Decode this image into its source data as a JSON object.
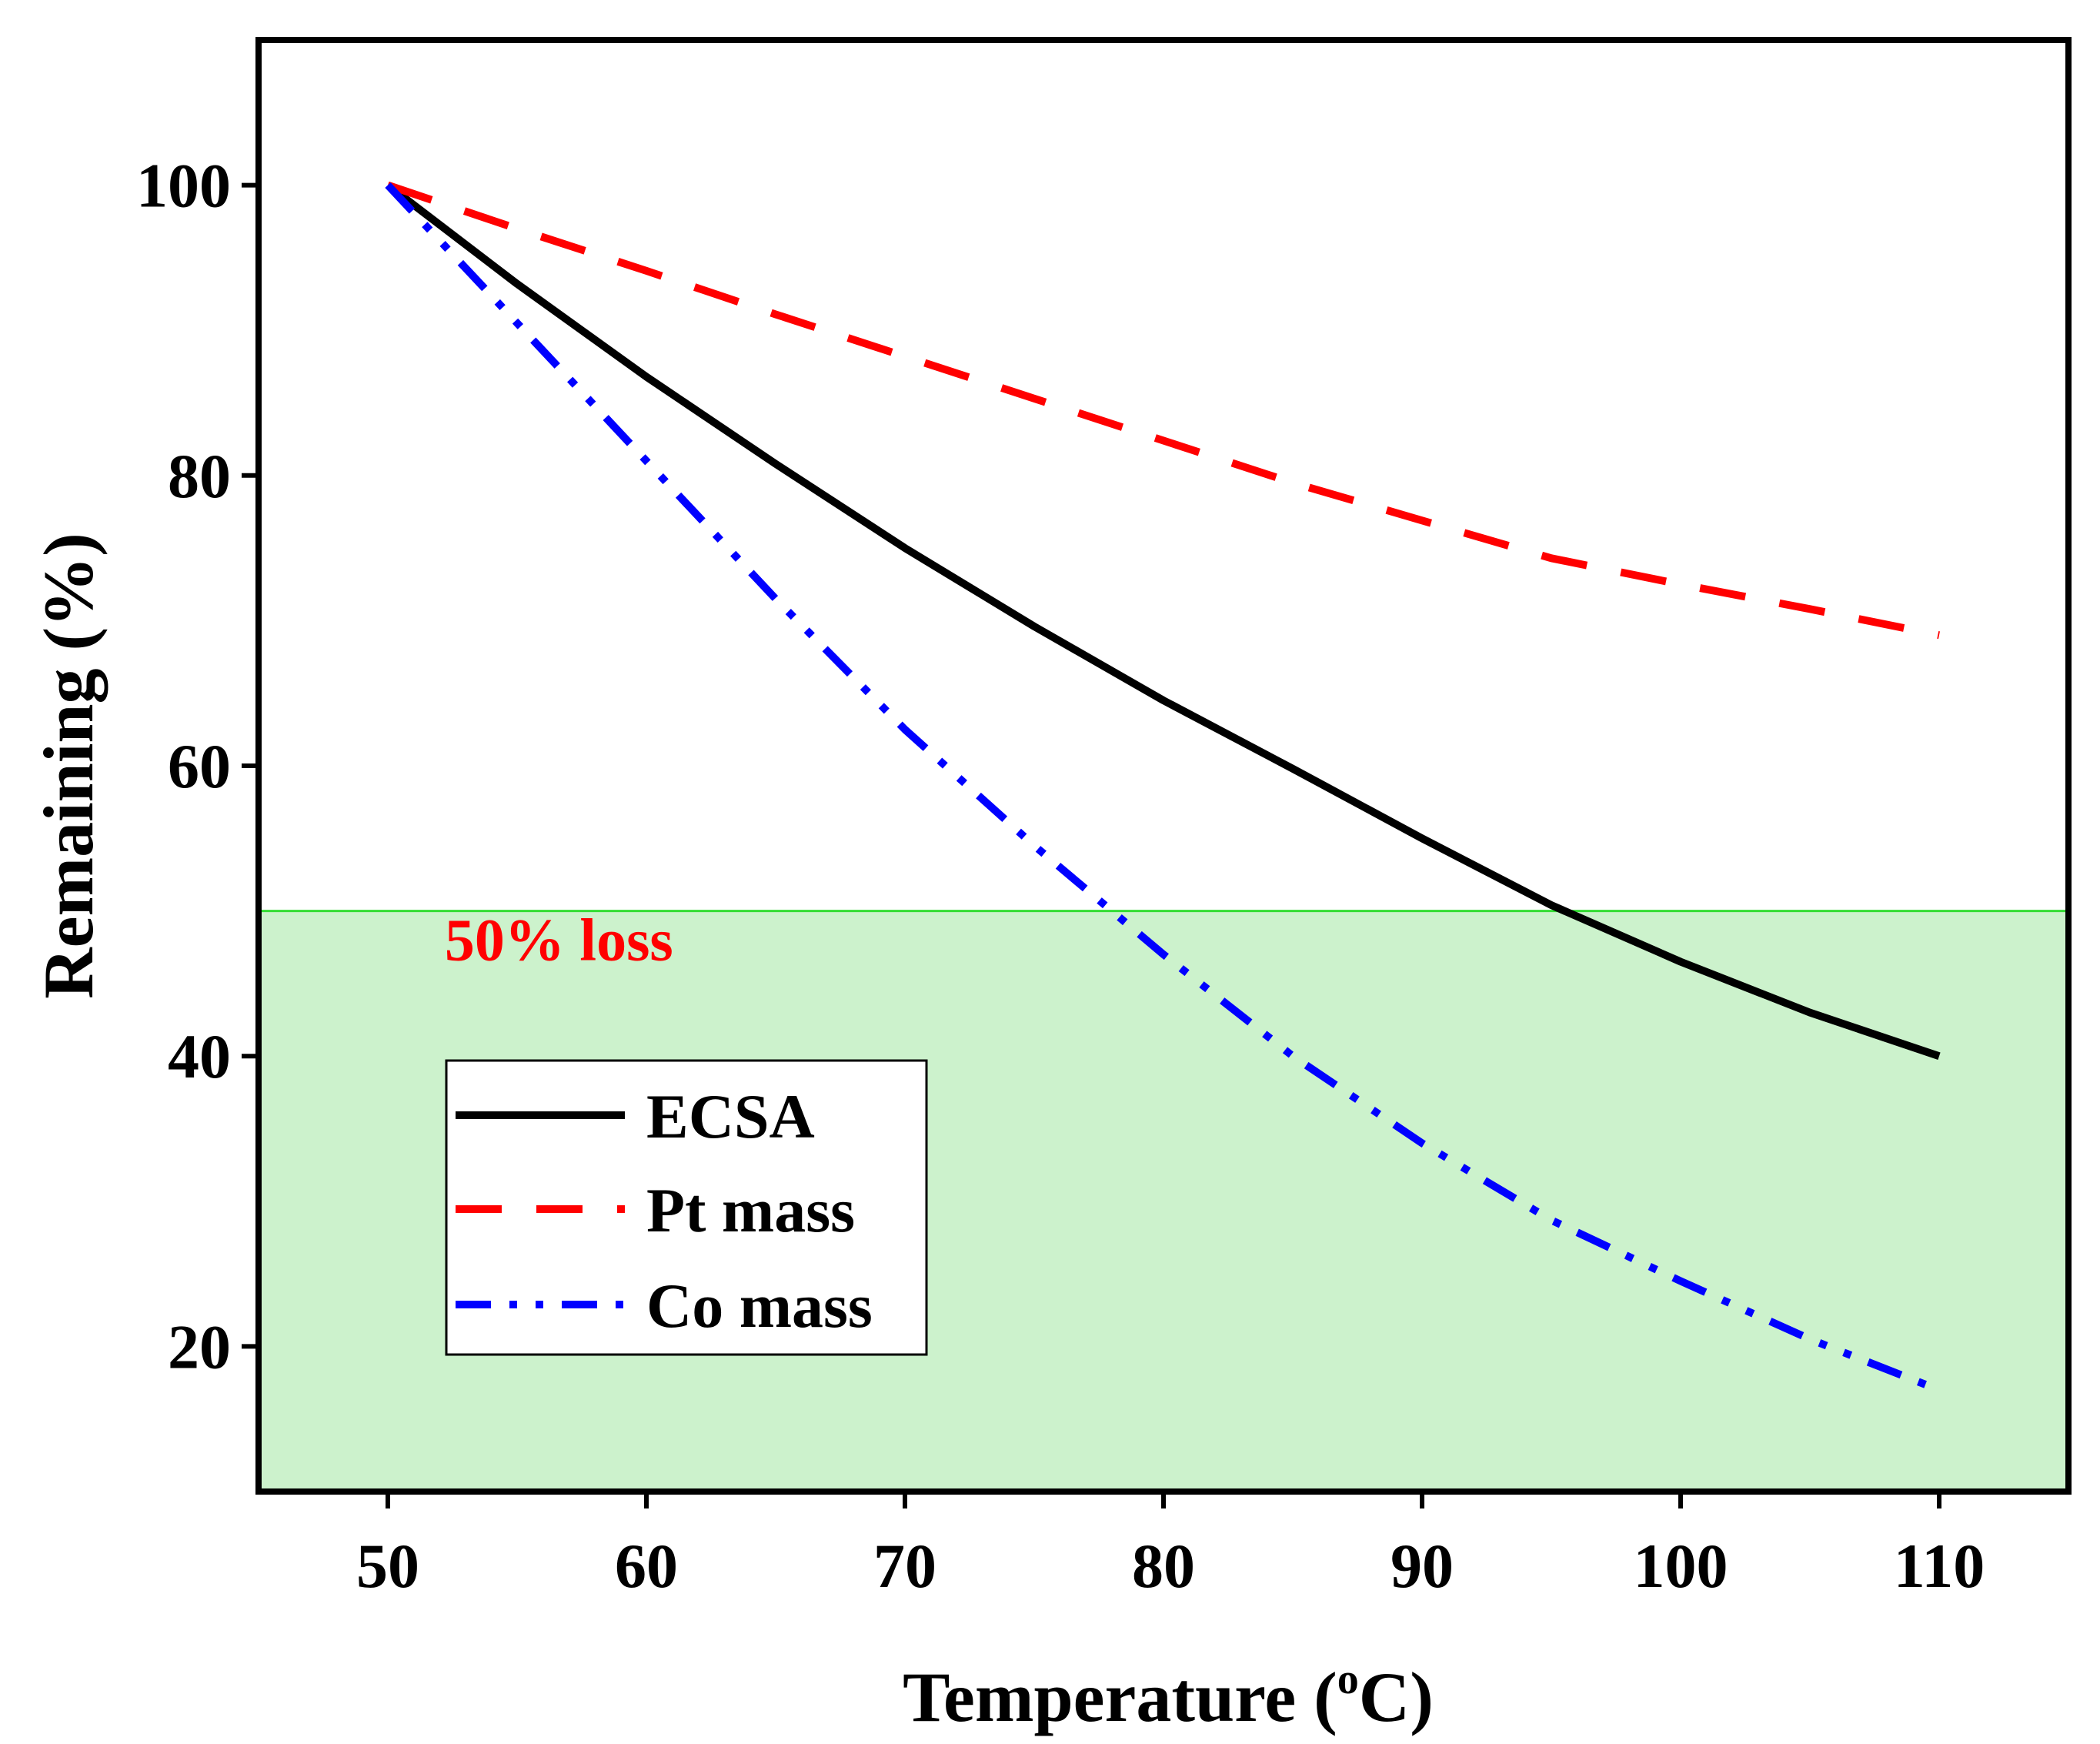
{
  "chart_data": {
    "type": "line",
    "title": "",
    "xlabel": "Temperature (",
    "xlabel_sup": "o",
    "xlabel_tail": "C)",
    "ylabel": "Remaining (%)",
    "xlim": [
      45,
      115
    ],
    "ylim": [
      10,
      110
    ],
    "x_ticks": [
      50,
      60,
      70,
      80,
      90,
      100,
      110
    ],
    "y_ticks": [
      20,
      40,
      60,
      80,
      100
    ],
    "x": [
      50,
      55,
      60,
      65,
      70,
      75,
      80,
      85,
      90,
      95,
      100,
      105,
      110
    ],
    "series": [
      {
        "name": "ECSA",
        "color": "#000000",
        "style": "solid",
        "values": [
          100,
          93.2,
          86.8,
          80.8,
          75.0,
          69.6,
          64.5,
          59.8,
          55.0,
          50.4,
          46.5,
          43.0,
          40.0
        ]
      },
      {
        "name": "Pt mass",
        "color": "#ff0000",
        "style": "dash",
        "values": [
          100,
          97.0,
          94.1,
          91.1,
          88.2,
          85.3,
          82.4,
          79.5,
          76.9,
          74.3,
          72.5,
          70.8,
          69.0
        ]
      },
      {
        "name": "Co mass",
        "color": "#0000ff",
        "style": "dashdotdot",
        "values": [
          100,
          90.5,
          81.0,
          71.5,
          62.5,
          54.5,
          47.0,
          40.0,
          34.0,
          28.7,
          24.5,
          20.5,
          17.0
        ]
      }
    ],
    "threshold": {
      "y": 50,
      "label": "50% loss",
      "line_color": "#33dd33",
      "fill_color": "#ccf2cc",
      "label_color": "#ff0000"
    },
    "legend_position": "lower-left"
  }
}
